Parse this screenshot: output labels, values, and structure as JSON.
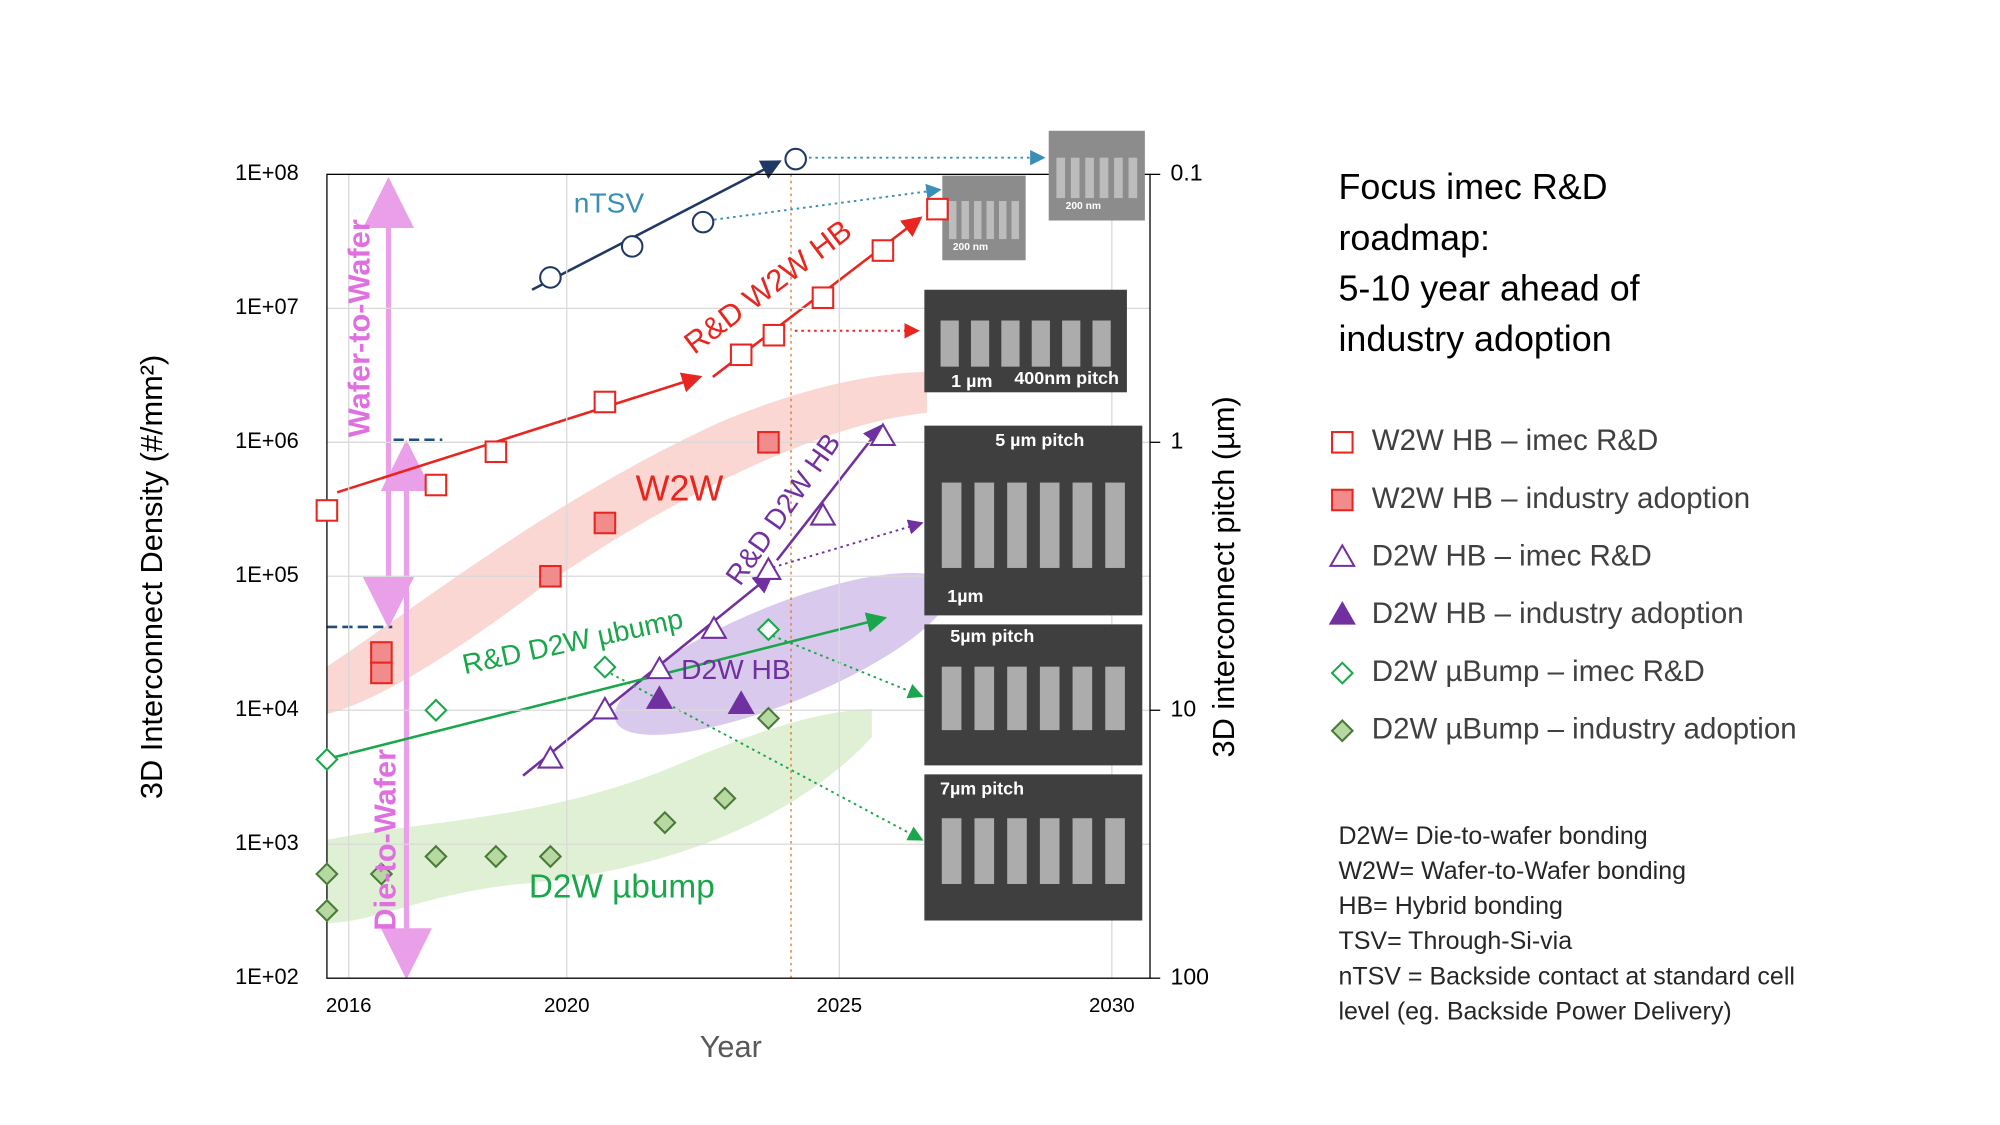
{
  "chart_data": {
    "type": "scatter",
    "log_y": true,
    "grid": true,
    "ylabel": "3D Interconnect Density (#/mm²)",
    "y2label": "3D interconnect pitch (µm)",
    "xlabel": "Year",
    "xlim": [
      2015.6,
      2030.7
    ],
    "xticks": [
      2016,
      2020,
      2025,
      2030
    ],
    "ylim": [
      100,
      100000000
    ],
    "yticks": [
      {
        "value": 100,
        "label": "1E+02"
      },
      {
        "value": 1000,
        "label": "1E+03"
      },
      {
        "value": 10000,
        "label": "1E+04"
      },
      {
        "value": 100000,
        "label": "1E+05"
      },
      {
        "value": 1000000,
        "label": "1E+06"
      },
      {
        "value": 10000000,
        "label": "1E+07"
      },
      {
        "value": 100000000,
        "label": "1E+08"
      }
    ],
    "y2lim": [
      100,
      0.1
    ],
    "y2ticks": [
      0.1,
      1,
      10,
      100
    ],
    "series": [
      {
        "name": "W2W HB – imec R&D",
        "marker": "square",
        "filled": false,
        "color": "#e8261f",
        "x": [
          2015.6,
          2017.6,
          2018.7,
          2020.7,
          2023.2,
          2023.8,
          2024.7,
          2025.8,
          2026.8
        ],
        "values": [
          310000,
          480000,
          850000,
          2000000,
          4500000,
          6300000,
          12000000,
          27000000,
          55000000
        ]
      },
      {
        "name": "W2W HB – industry adoption",
        "marker": "square",
        "filled": true,
        "color": "#e8261f",
        "fillcolor": "#f28b8b",
        "x": [
          2016.6,
          2016.6,
          2019.7,
          2020.7,
          2023.7
        ],
        "values": [
          27000,
          19000,
          100000,
          250000,
          1000000
        ]
      },
      {
        "name": "D2W HB – imec R&D",
        "marker": "triangle",
        "filled": false,
        "color": "#7030a0",
        "x": [
          2019.7,
          2020.7,
          2021.7,
          2022.7,
          2023.7,
          2024.7,
          2025.8
        ],
        "values": [
          4300,
          10000,
          20000,
          40000,
          110000,
          280000,
          1100000
        ]
      },
      {
        "name": "D2W HB – industry adoption",
        "marker": "triangle",
        "filled": true,
        "color": "#7030a0",
        "fillcolor": "#7030a0",
        "x": [
          2021.7,
          2023.2
        ],
        "values": [
          12000,
          11000
        ]
      },
      {
        "name": "D2W µBump – imec R&D",
        "marker": "diamond",
        "filled": false,
        "color": "#1aa64a",
        "x": [
          2015.6,
          2017.6,
          2020.7,
          2023.7
        ],
        "values": [
          4300,
          10000,
          21000,
          40000
        ]
      },
      {
        "name": "D2W µBump – industry adoption",
        "marker": "diamond",
        "filled": true,
        "color": "#4a7a3a",
        "fillcolor": "#b5d9a0",
        "x": [
          2015.6,
          2015.6,
          2016.6,
          2017.6,
          2018.7,
          2019.7,
          2021.8,
          2022.9,
          2023.7
        ],
        "values": [
          600,
          320,
          600,
          810,
          810,
          810,
          1450,
          2200,
          8700
        ]
      },
      {
        "name": "nTSV",
        "marker": "circle",
        "filled": false,
        "color": "#1f3864",
        "show_in_legend": false,
        "x": [
          2019.7,
          2021.2,
          2022.5,
          2024.2
        ],
        "values": [
          17000000,
          29000000,
          44000000,
          130000000
        ]
      }
    ],
    "annotations": [
      "nTSV",
      "R&D W2W HB",
      "W2W",
      "R&D D2W HB",
      "R&D D2W µbump",
      "D2W HB",
      "D2W µbump",
      "Wafer-to-Wafer",
      "Die-to-Wafer"
    ],
    "insets": [
      {
        "labels": [
          "200 nm"
        ]
      },
      {
        "labels": [
          "200 nm"
        ]
      },
      {
        "labels": [
          "1 µm",
          "400nm pitch"
        ]
      },
      {
        "labels": [
          "5 µm pitch",
          "1µm"
        ]
      },
      {
        "labels": [
          "5µm pitch"
        ]
      },
      {
        "labels": [
          "7µm pitch"
        ]
      }
    ]
  },
  "side_panel": {
    "title": [
      "Focus imec R&D",
      "roadmap:",
      "5-10 year ahead of",
      "industry adoption"
    ],
    "notes": [
      "D2W= Die-to-wafer bonding",
      "W2W= Wafer-to-Wafer bonding",
      "HB= Hybrid bonding",
      "TSV= Through-Si-via",
      "nTSV = Backside contact at standard cell",
      "level (eg. Backside Power Delivery)"
    ]
  }
}
